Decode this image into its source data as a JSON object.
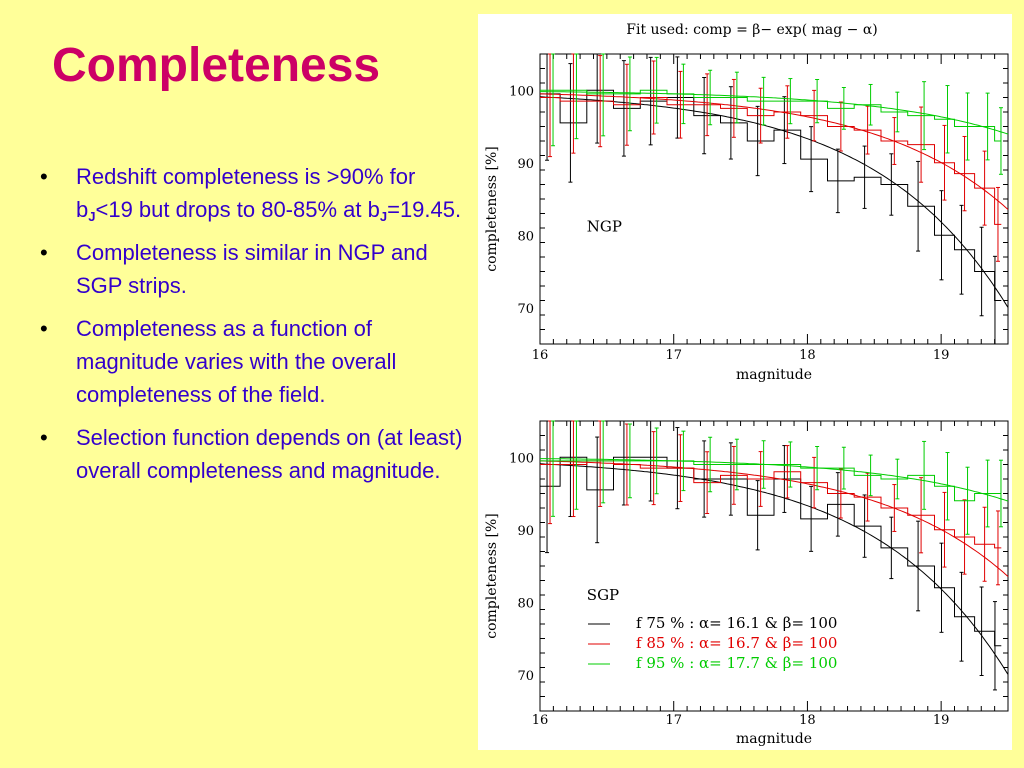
{
  "slide": {
    "title": "Completeness",
    "bullets": [
      {
        "parts": [
          {
            "t": "Redshift completeness is >90% for b"
          },
          {
            "sub": "J"
          },
          {
            "t": "<19 but drops to 80-85% at b"
          },
          {
            "sub": "J"
          },
          {
            "t": "=19.45."
          }
        ]
      },
      {
        "parts": [
          {
            "t": "Completeness is similar in NGP and SGP strips."
          }
        ]
      },
      {
        "parts": [
          {
            "t": "Completeness as a function of magnitude varies with the overall completeness of the field."
          }
        ]
      },
      {
        "parts": [
          {
            "t": "Selection function depends on (at least) overall completeness and magnitude."
          }
        ]
      }
    ]
  },
  "figure": {
    "header": "Fit used: comp = β− exp( mag − α)"
  },
  "chart_data": [
    {
      "type": "line",
      "panel": "NGP",
      "panel_label": "NGP",
      "xlabel": "magnitude",
      "ylabel": "completeness [%]",
      "xlim": [
        16,
        19.5
      ],
      "ylim": [
        65,
        105
      ],
      "xticks": [
        16,
        17,
        18,
        19
      ],
      "yticks": [
        70,
        80,
        90,
        100
      ],
      "bin_edges": [
        16.0,
        16.15,
        16.35,
        16.55,
        16.75,
        16.95,
        17.15,
        17.35,
        17.55,
        17.75,
        17.95,
        18.15,
        18.35,
        18.55,
        18.75,
        18.95,
        19.1,
        19.25,
        19.4,
        19.45
      ],
      "series": [
        {
          "color": "#000000",
          "alpha": 16.1,
          "beta": 100,
          "values": [
            99.5,
            95.5,
            100,
            97.5,
            98.5,
            99,
            96.5,
            95.5,
            93,
            94.5,
            90.5,
            87.5,
            88,
            87,
            84,
            80,
            78,
            75,
            71
          ]
        },
        {
          "color": "#e00000",
          "alpha": 16.7,
          "beta": 100,
          "values": [
            99,
            98.5,
            98.5,
            98,
            99,
            98,
            98,
            97.5,
            96.5,
            97,
            96.5,
            95,
            94.5,
            93,
            92.5,
            90,
            88.5,
            86.5,
            81.5
          ]
        },
        {
          "color": "#00cc00",
          "alpha": 17.7,
          "beta": 100,
          "values": [
            100,
            100,
            99.5,
            99.5,
            100,
            99.5,
            99,
            99,
            98.5,
            98.5,
            98.5,
            97.5,
            98,
            97,
            96.5,
            96,
            95,
            95,
            93
          ]
        }
      ]
    },
    {
      "type": "line",
      "panel": "SGP",
      "panel_label": "SGP",
      "xlabel": "magnitude",
      "ylabel": "completeness [%]",
      "xlim": [
        16,
        19.5
      ],
      "ylim": [
        65,
        105
      ],
      "xticks": [
        16,
        17,
        18,
        19
      ],
      "yticks": [
        70,
        80,
        90,
        100
      ],
      "bin_edges": [
        16.0,
        16.15,
        16.35,
        16.55,
        16.75,
        16.95,
        17.15,
        17.35,
        17.55,
        17.75,
        17.95,
        18.15,
        18.35,
        18.55,
        18.75,
        18.95,
        19.1,
        19.25,
        19.4,
        19.45
      ],
      "legend": [
        {
          "text": "f 75 % : α= 16.1 & β= 100",
          "color": "#000000"
        },
        {
          "text": "f 85 % : α= 16.7 & β= 100",
          "color": "#e00000"
        },
        {
          "text": "f 95 % : α= 17.7 & β= 100",
          "color": "#00cc00"
        }
      ],
      "series": [
        {
          "color": "#000000",
          "alpha": 16.1,
          "beta": 100,
          "values": [
            96,
            100,
            95.5,
            100,
            100,
            98.5,
            97,
            97,
            92,
            97,
            91.5,
            93.5,
            90.5,
            87.5,
            85,
            82,
            78,
            76,
            74
          ]
        },
        {
          "color": "#e00000",
          "alpha": 16.7,
          "beta": 100,
          "values": [
            99,
            99,
            99.5,
            99,
            98.5,
            98.5,
            96.5,
            97.5,
            97,
            98,
            96.5,
            95,
            94.5,
            93,
            92,
            90,
            89,
            88,
            87.5
          ]
        },
        {
          "color": "#00cc00",
          "alpha": 17.7,
          "beta": 100,
          "values": [
            99.5,
            99.5,
            99.5,
            99.5,
            99.5,
            99.5,
            99,
            99,
            99,
            99,
            98.5,
            98.5,
            97.5,
            97,
            97.5,
            96,
            94,
            95,
            95
          ]
        }
      ]
    }
  ]
}
